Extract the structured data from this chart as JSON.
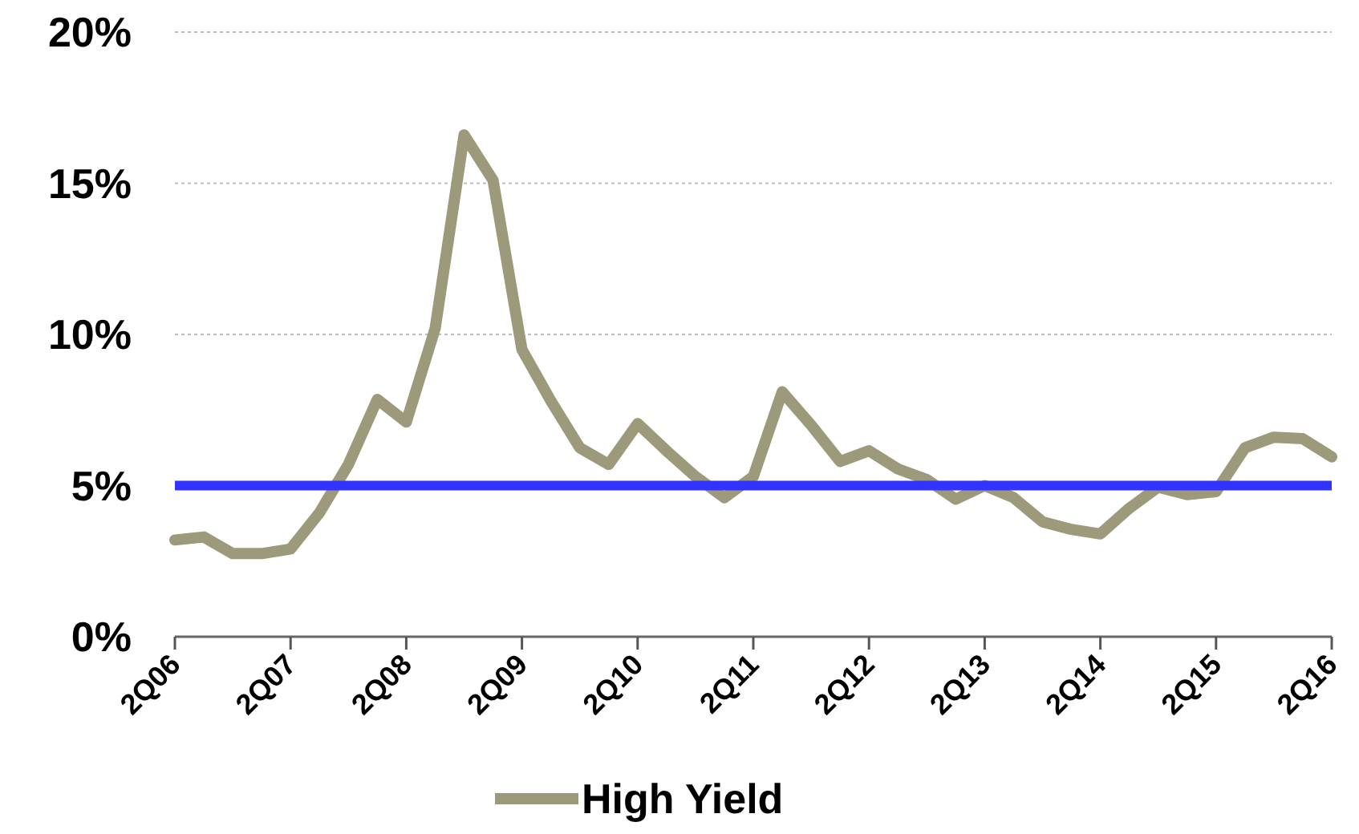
{
  "chart_data": {
    "type": "line",
    "categories": [
      "2Q06",
      null,
      null,
      null,
      "2Q07",
      null,
      null,
      null,
      "2Q08",
      null,
      null,
      null,
      "2Q09",
      null,
      null,
      null,
      "2Q10",
      null,
      null,
      null,
      "2Q11",
      null,
      null,
      null,
      "2Q12",
      null,
      null,
      null,
      "2Q13",
      null,
      null,
      null,
      "2Q14",
      null,
      null,
      null,
      "2Q15",
      null,
      null,
      null,
      "2Q16"
    ],
    "series": [
      {
        "name": "High Yield",
        "color": "#9c9a7a",
        "values": [
          3.2,
          3.3,
          2.75,
          2.75,
          2.9,
          4.1,
          5.7,
          7.85,
          7.1,
          10.2,
          16.6,
          15.1,
          9.5,
          7.8,
          6.25,
          5.7,
          7.05,
          6.15,
          5.3,
          4.6,
          5.3,
          8.1,
          7.0,
          5.8,
          6.15,
          5.55,
          5.2,
          4.55,
          5.0,
          4.6,
          3.8,
          3.55,
          3.4,
          4.25,
          4.95,
          4.7,
          4.8,
          6.25,
          6.6,
          6.55,
          5.95
        ]
      }
    ],
    "ylim": [
      0,
      20
    ],
    "yticks": [
      {
        "value": 0,
        "label": "0%"
      },
      {
        "value": 5,
        "label": "5%"
      },
      {
        "value": 10,
        "label": "10%"
      },
      {
        "value": 15,
        "label": "15%"
      },
      {
        "value": 20,
        "label": "20%"
      }
    ],
    "grid": "y",
    "legend": "bottom",
    "marker": "none",
    "line_style": "solid",
    "ref_lines": [
      {
        "axis": "y",
        "value": 5,
        "color": "#3333ff"
      }
    ]
  }
}
